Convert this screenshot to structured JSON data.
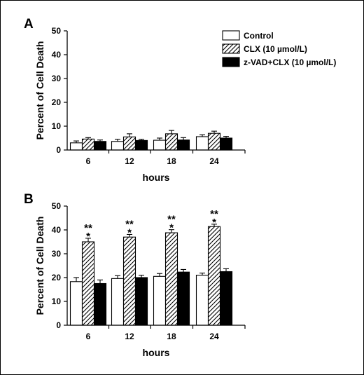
{
  "chart_data": [
    {
      "type": "bar",
      "panel_label": "A",
      "categories": [
        "6",
        "12",
        "18",
        "24"
      ],
      "xlabel": "hours",
      "ylabel": "Percent of Cell Death",
      "ylim": [
        0,
        50
      ],
      "yticks": [
        "0",
        "10",
        "20",
        "30",
        "40",
        "50"
      ],
      "series": [
        {
          "name": "Control",
          "values": [
            3.0,
            3.6,
            4.1,
            5.6
          ],
          "errors": [
            0.8,
            0.9,
            0.9,
            0.8
          ],
          "fill": "open"
        },
        {
          "name": "CLX (10 µmol/L)",
          "values": [
            4.6,
            5.5,
            6.8,
            7.0
          ],
          "errors": [
            0.6,
            1.3,
            1.4,
            0.9
          ],
          "fill": "hatched"
        },
        {
          "name": "z-VAD+CLX (10 µmol/L)",
          "values": [
            3.6,
            4.0,
            4.2,
            5.0
          ],
          "errors": [
            0.6,
            0.5,
            1.0,
            0.7
          ],
          "fill": "solid"
        }
      ],
      "legend_position": "top-right",
      "annotations": []
    },
    {
      "type": "bar",
      "panel_label": "B",
      "categories": [
        "6",
        "12",
        "18",
        "24"
      ],
      "xlabel": "hours",
      "ylabel": "Percent of Cell Death",
      "ylim": [
        0,
        50
      ],
      "yticks": [
        "0",
        "10",
        "20",
        "30",
        "40",
        "50"
      ],
      "series": [
        {
          "name": "Control",
          "values": [
            18.3,
            19.6,
            20.5,
            21.0
          ],
          "errors": [
            1.7,
            1.2,
            1.2,
            0.9
          ],
          "fill": "open"
        },
        {
          "name": "CLX (10 µmol/L)",
          "values": [
            35.0,
            37.0,
            38.8,
            41.4
          ],
          "errors": [
            1.5,
            1.1,
            1.3,
            1.0
          ],
          "fill": "hatched"
        },
        {
          "name": "z-VAD+CLX (10 µmol/L)",
          "values": [
            17.5,
            20.0,
            22.3,
            22.5
          ],
          "errors": [
            1.5,
            1.0,
            1.1,
            1.2
          ],
          "fill": "solid"
        }
      ],
      "annotations": [
        {
          "category": "6",
          "lines": [
            "**",
            "*"
          ]
        },
        {
          "category": "12",
          "lines": [
            "**",
            "*"
          ]
        },
        {
          "category": "18",
          "lines": [
            "**",
            "*"
          ]
        },
        {
          "category": "24",
          "lines": [
            "**",
            "*"
          ]
        }
      ]
    }
  ]
}
